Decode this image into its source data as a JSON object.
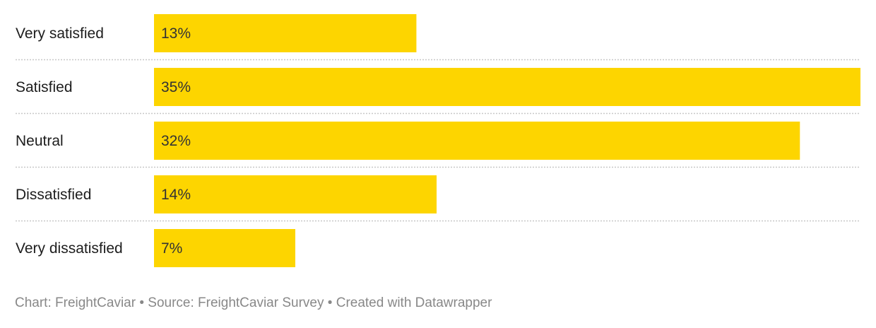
{
  "chart_data": {
    "type": "bar",
    "orientation": "horizontal",
    "categories": [
      "Very satisfied",
      "Satisfied",
      "Neutral",
      "Dissatisfied",
      "Very dissatisfied"
    ],
    "values": [
      13,
      35,
      32,
      14,
      7
    ],
    "value_labels": [
      "13%",
      "35%",
      "32%",
      "14%",
      "7%"
    ],
    "unit": "%",
    "xlim": [
      0,
      35
    ],
    "bar_color": "#fdd500",
    "grid": false
  },
  "footer": {
    "chart_credit": "Chart: FreightCaviar",
    "source": "Source: FreightCaviar Survey",
    "created_with": "Created with Datawrapper",
    "separator": " • "
  }
}
